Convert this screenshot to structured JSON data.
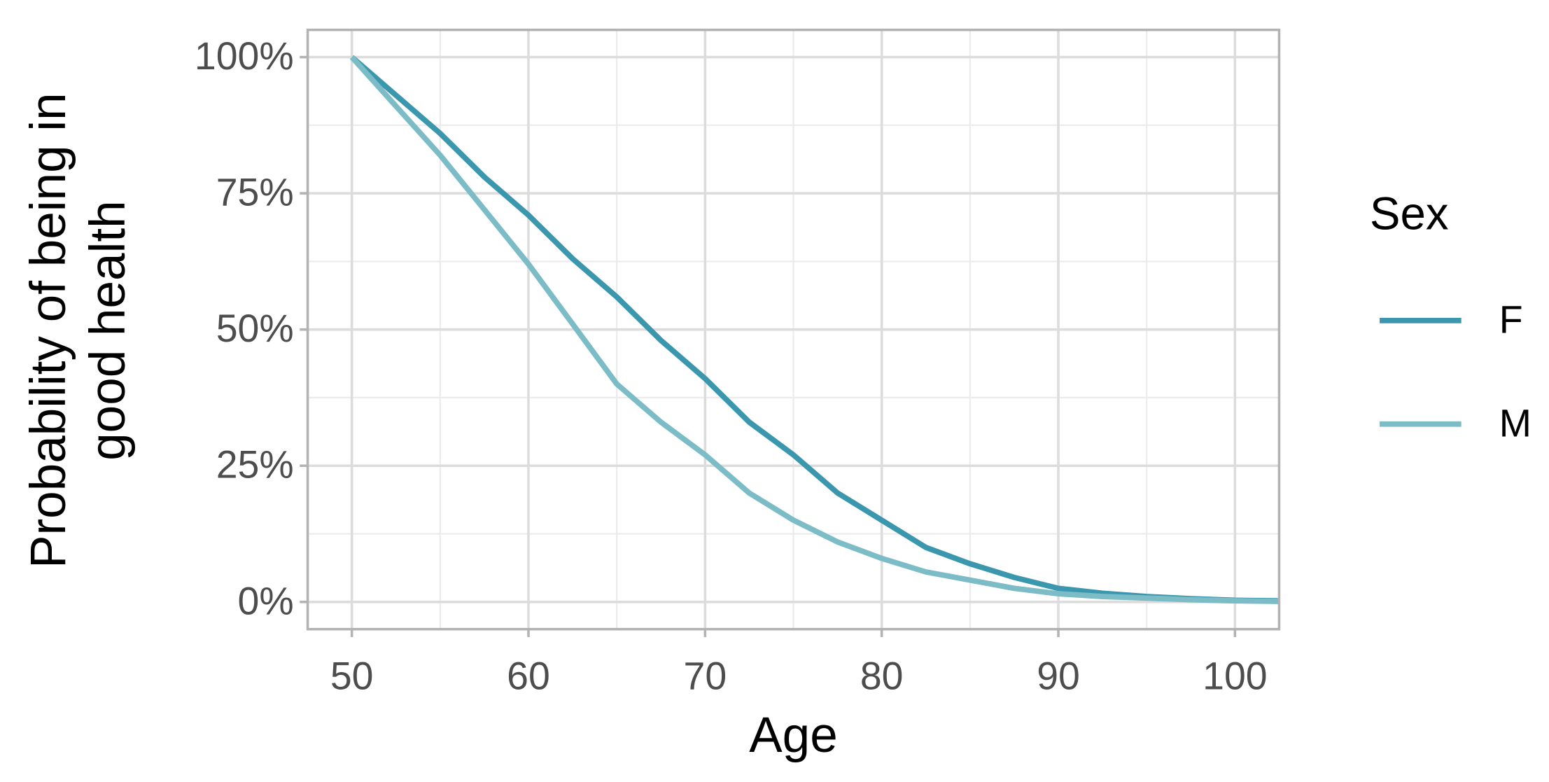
{
  "chart_data": {
    "type": "line",
    "xlabel": "Age",
    "ylabel": [
      "Probability of being in",
      "good health"
    ],
    "legend_title": "Sex",
    "legend_position": "right",
    "x": [
      50,
      52.5,
      55,
      57.5,
      60,
      62.5,
      65,
      67.5,
      70,
      72.5,
      75,
      77.5,
      80,
      82.5,
      85,
      87.5,
      90,
      92.5,
      95,
      97.5,
      100,
      102.5
    ],
    "series": [
      {
        "name": "F",
        "color": "#3a97ae",
        "values": [
          100,
          93,
          86,
          78,
          71,
          63,
          56,
          48,
          41,
          33,
          27,
          20,
          15,
          10,
          7,
          4.5,
          2.5,
          1.6,
          1,
          0.6,
          0.3,
          0.2
        ]
      },
      {
        "name": "M",
        "color": "#7bbcc6",
        "values": [
          100,
          91,
          82,
          72,
          62,
          51,
          40,
          33,
          27,
          20,
          15,
          11,
          8,
          5.5,
          4,
          2.5,
          1.5,
          1,
          0.7,
          0.4,
          0.2,
          0.1
        ]
      }
    ],
    "xlim": [
      47.5,
      102.5
    ],
    "ylim": [
      -5,
      105
    ],
    "xticks": [
      50,
      60,
      70,
      80,
      90,
      100
    ],
    "xminorticks": [
      55,
      65,
      75,
      85,
      95
    ],
    "yticks": [
      {
        "value": 0,
        "label": "0%"
      },
      {
        "value": 25,
        "label": "25%"
      },
      {
        "value": 50,
        "label": "50%"
      },
      {
        "value": 75,
        "label": "75%"
      },
      {
        "value": 100,
        "label": "100%"
      }
    ],
    "yminorticks": [
      12.5,
      37.5,
      62.5,
      87.5
    ],
    "grid": true
  }
}
